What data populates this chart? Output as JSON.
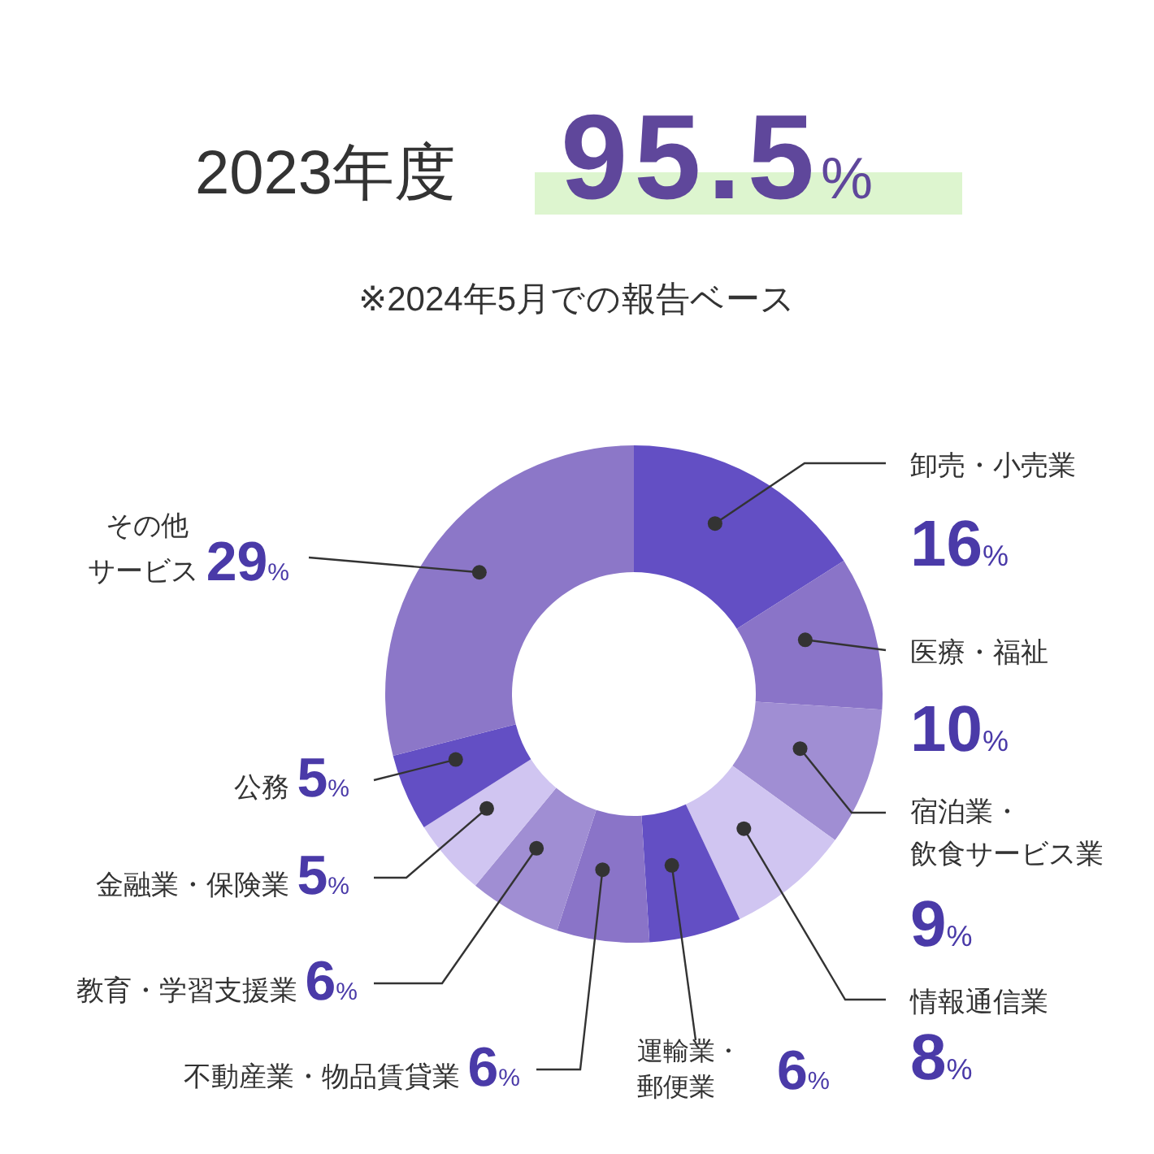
{
  "chart_data": {
    "type": "donut",
    "title": "2023年度",
    "annotations": [
      "95.5%"
    ],
    "subtitle": "※2024年5月での報告ベース",
    "categories": [
      "卸売・小売業",
      "医療・福祉",
      "宿泊業・飲食サービス業",
      "情報通信業",
      "運輸業・郵便業",
      "不動産業・物品賃貸業",
      "教育・学習支援業",
      "金融業・保険業",
      "公務",
      "その他サービス"
    ],
    "values": [
      16,
      10,
      9,
      8,
      6,
      6,
      6,
      5,
      5,
      29
    ],
    "value_labels": [
      "16%",
      "10%",
      "9%",
      "8%",
      "6%",
      "6%",
      "6%",
      "5%",
      "5%",
      "29%"
    ],
    "colors": [
      "#634fc4",
      "#8a74c8",
      "#a08ed3",
      "#d0c5f1",
      "#634fc4",
      "#8a74c8",
      "#a08ed3",
      "#d0c5f1",
      "#634fc4",
      "#8c77c8"
    ]
  }
}
